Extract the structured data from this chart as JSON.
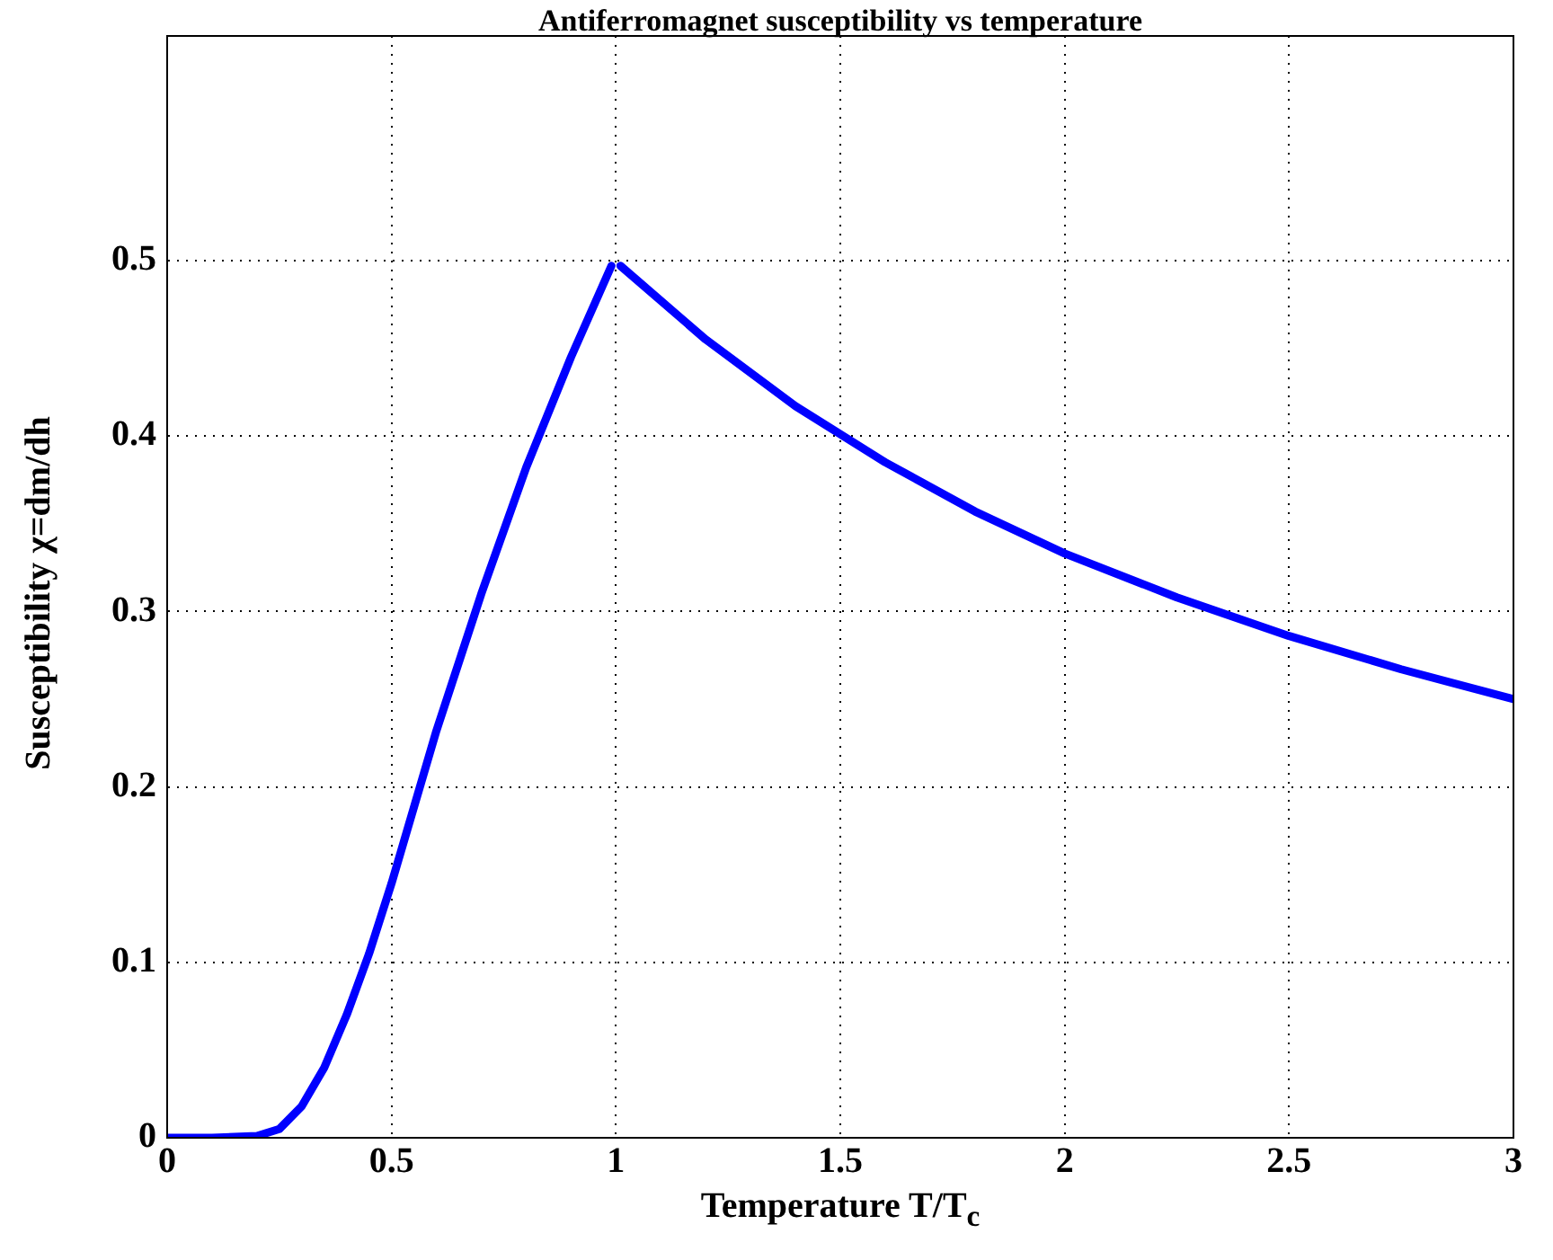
{
  "chart_data": {
    "type": "line",
    "title": "Antiferromagnet susceptibility vs temperature",
    "xlabel": "Temperature T/T$_{c}$",
    "ylabel": "Susceptibility χ=dm/dh",
    "x": [
      0,
      0.1,
      0.2,
      0.25,
      0.3,
      0.35,
      0.4,
      0.45,
      0.5,
      0.6,
      0.7,
      0.8,
      0.9,
      0.99,
      1.0,
      1.01,
      1.2,
      1.4,
      1.6,
      1.8,
      2.0,
      2.25,
      2.5,
      2.75,
      3.0
    ],
    "series": [
      {
        "color": "#0000ff",
        "values": [
          0,
          0,
          0.001,
          0.005,
          0.018,
          0.04,
          0.07,
          0.105,
          0.145,
          0.232,
          0.31,
          0.382,
          0.445,
          0.497,
          null,
          0.497,
          0.455,
          0.417,
          0.385,
          0.357,
          0.333,
          0.308,
          0.286,
          0.267,
          0.25
        ]
      }
    ],
    "xlim": [
      0,
      3
    ],
    "xticks": [
      0,
      0.5,
      1,
      1.5,
      2,
      2.5,
      3
    ],
    "ylim": [
      0,
      0.628
    ],
    "yticks": [
      0,
      0.1,
      0.2,
      0.3,
      0.4,
      0.5
    ],
    "grid": true,
    "legend": false,
    "marker": "none",
    "line_style": "solid"
  }
}
